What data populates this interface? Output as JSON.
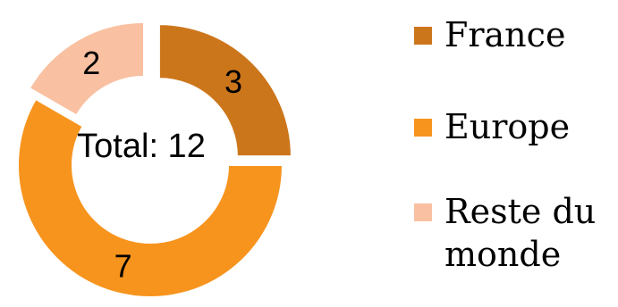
{
  "chart_data": {
    "type": "pie",
    "variant": "doughnut",
    "categories": [
      "France",
      "Europe",
      "Reste du monde"
    ],
    "values": [
      3,
      7,
      2
    ],
    "colors": [
      "#CC761B",
      "#F7941E",
      "#F9C1A1"
    ],
    "center_text": "Total: 12",
    "legend": {
      "placement": "right",
      "entries": [
        {
          "lines": [
            "France"
          ]
        },
        {
          "lines": [
            "Europe"
          ]
        },
        {
          "lines": [
            "Reste du",
            "monde"
          ]
        }
      ]
    },
    "data_labels_visible": true
  }
}
